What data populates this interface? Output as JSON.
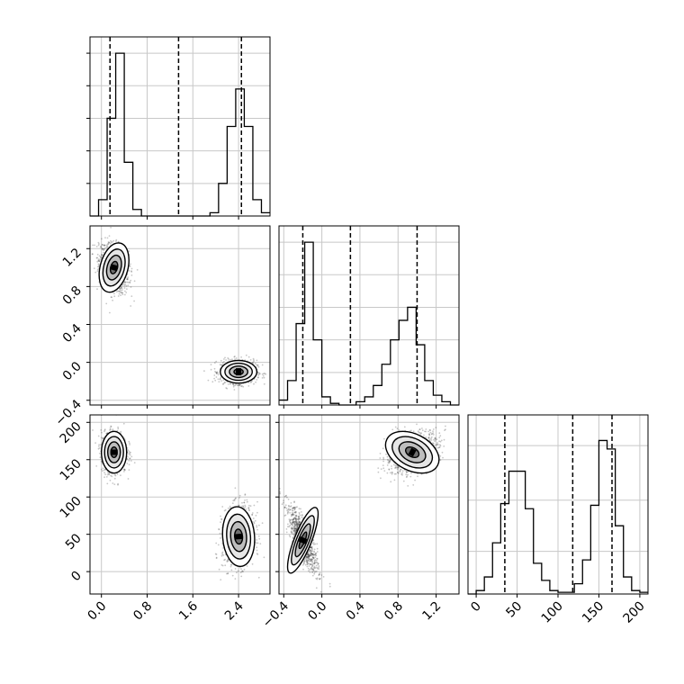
{
  "chart_data": [
    {
      "type": "histogram",
      "panel": "x0 marginal",
      "bins": [
        -0.2,
        -0.05,
        0.1,
        0.25,
        0.4,
        0.55,
        0.7,
        0.85,
        1.0,
        1.15,
        1.3,
        1.45,
        1.6,
        1.75,
        1.9,
        2.05,
        2.2,
        2.35,
        2.5,
        2.65,
        2.8,
        2.95
      ],
      "values": [
        0,
        0.1,
        0.6,
        1.0,
        0.33,
        0.04,
        0,
        0,
        0,
        0,
        0,
        0,
        0,
        0,
        0.02,
        0.2,
        0.55,
        0.78,
        0.55,
        0.1,
        0.02
      ],
      "quantiles": [
        0.15,
        1.35,
        2.45
      ],
      "xlim": [
        -0.2,
        2.95
      ],
      "ylim": [
        0,
        1.1
      ],
      "grid": true
    },
    {
      "type": "histogram",
      "panel": "x1 marginal",
      "bins": [
        -0.45,
        -0.36,
        -0.27,
        -0.18,
        -0.09,
        0.0,
        0.09,
        0.18,
        0.27,
        0.36,
        0.45,
        0.54,
        0.63,
        0.72,
        0.81,
        0.9,
        0.99,
        1.08,
        1.17,
        1.26,
        1.35,
        1.44
      ],
      "values": [
        0.03,
        0.15,
        0.5,
        1.0,
        0.4,
        0.05,
        0.01,
        0,
        0,
        0.02,
        0.05,
        0.12,
        0.25,
        0.4,
        0.52,
        0.6,
        0.37,
        0.15,
        0.06,
        0.02,
        0
      ],
      "quantiles": [
        -0.2,
        0.3,
        1.0
      ],
      "xlim": [
        -0.45,
        1.44
      ],
      "ylim": [
        0,
        1.1
      ],
      "grid": true
    },
    {
      "type": "histogram",
      "panel": "x2 marginal",
      "bins": [
        -10,
        0,
        10,
        20,
        30,
        40,
        50,
        60,
        70,
        80,
        90,
        100,
        110,
        120,
        130,
        140,
        150,
        160,
        170,
        180,
        190,
        200,
        210
      ],
      "values": [
        0,
        0.02,
        0.1,
        0.3,
        0.53,
        0.72,
        0.72,
        0.5,
        0.18,
        0.08,
        0.02,
        0.01,
        0.01,
        0.06,
        0.2,
        0.52,
        0.9,
        0.85,
        0.4,
        0.1,
        0.02,
        0.01
      ],
      "quantiles": [
        35,
        118,
        166
      ],
      "xlim": [
        -10,
        210
      ],
      "ylim": [
        0,
        1.05
      ],
      "grid": true,
      "xticks": [
        "0",
        "50",
        "100",
        "150",
        "200"
      ]
    },
    {
      "type": "scatter",
      "panel": "x0 vs x1",
      "clusters": [
        {
          "center_x": 0.22,
          "center_y": 1.0,
          "sd_x": 0.13,
          "sd_y": 0.13,
          "rho": -0.3
        },
        {
          "center_x": 2.4,
          "center_y": -0.1,
          "sd_x": 0.16,
          "sd_y": 0.06,
          "rho": 0.0
        }
      ],
      "xlim": [
        -0.2,
        2.95
      ],
      "ylim": [
        -0.45,
        1.44
      ],
      "yticks": [
        "-0.4",
        "0.0",
        "0.4",
        "0.8",
        "1.2"
      ],
      "grid": true
    },
    {
      "type": "scatter",
      "panel": "x0 vs x2",
      "clusters": [
        {
          "center_x": 0.22,
          "center_y": 160,
          "sd_x": 0.11,
          "sd_y": 14,
          "rho": 0.0
        },
        {
          "center_x": 2.4,
          "center_y": 47,
          "sd_x": 0.14,
          "sd_y": 20,
          "rho": 0.1
        }
      ],
      "xlim": [
        -0.2,
        2.95
      ],
      "ylim": [
        -30,
        210
      ],
      "xticks": [
        "0.0",
        "0.8",
        "1.6",
        "2.4"
      ],
      "yticks": [
        "0",
        "50",
        "100",
        "150",
        "200"
      ],
      "grid": true
    },
    {
      "type": "scatter",
      "panel": "x1 vs x2",
      "clusters": [
        {
          "center_x": 0.95,
          "center_y": 160,
          "sd_x": 0.14,
          "sd_y": 14,
          "rho": 0.35
        },
        {
          "center_x": -0.2,
          "center_y": 42,
          "sd_x": 0.08,
          "sd_y": 22,
          "rho": -0.8
        }
      ],
      "xlim": [
        -0.45,
        1.44
      ],
      "ylim": [
        -30,
        210
      ],
      "xticks": [
        "-0.4",
        "0.0",
        "0.4",
        "0.8",
        "1.2"
      ],
      "grid": true
    }
  ]
}
